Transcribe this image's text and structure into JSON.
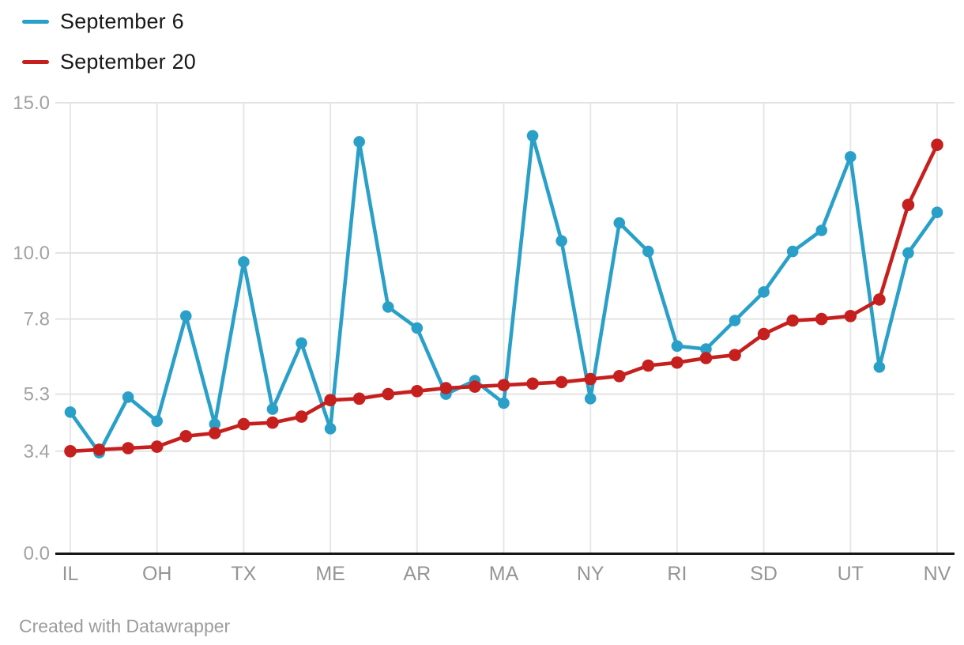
{
  "legend": {
    "items": [
      {
        "label": "September 6",
        "color": "#2aa0c9"
      },
      {
        "label": "September 20",
        "color": "#c6201e"
      }
    ]
  },
  "footer": {
    "credit": "Created with Datawrapper"
  },
  "chart_data": {
    "type": "line",
    "title": "",
    "xlabel": "",
    "ylabel": "",
    "legend_position": "top-left",
    "grid": true,
    "n_points": 31,
    "x_tick_labels": [
      "IL",
      "OH",
      "TX",
      "ME",
      "AR",
      "MA",
      "NY",
      "RI",
      "SD",
      "UT",
      "NV"
    ],
    "x_tick_positions": [
      0,
      3,
      6,
      9,
      12,
      15,
      18,
      21,
      24,
      27,
      30
    ],
    "y_ticks": [
      0.0,
      3.4,
      5.3,
      7.8,
      10.0,
      15.0
    ],
    "y_tick_labels": [
      "0.0",
      "3.4",
      "5.3",
      "7.8",
      "10.0",
      "15.0"
    ],
    "ylim": [
      0,
      15
    ],
    "series": [
      {
        "name": "September 6",
        "color": "#2aa0c9",
        "values": [
          4.7,
          3.35,
          5.2,
          4.4,
          7.9,
          4.3,
          9.7,
          4.8,
          7.0,
          4.15,
          13.7,
          8.2,
          7.5,
          5.3,
          5.75,
          5.0,
          13.9,
          10.4,
          5.15,
          11.0,
          10.05,
          6.9,
          6.8,
          7.75,
          8.7,
          10.05,
          10.75,
          13.2,
          6.2,
          10.0,
          11.35
        ]
      },
      {
        "name": "September 20",
        "color": "#c6201e",
        "values": [
          3.4,
          3.45,
          3.5,
          3.55,
          3.9,
          4.0,
          4.3,
          4.35,
          4.55,
          5.1,
          5.15,
          5.3,
          5.4,
          5.5,
          5.55,
          5.6,
          5.65,
          5.7,
          5.8,
          5.9,
          6.25,
          6.35,
          6.5,
          6.6,
          7.3,
          7.75,
          7.8,
          7.9,
          8.45,
          11.6,
          13.6
        ]
      }
    ]
  }
}
